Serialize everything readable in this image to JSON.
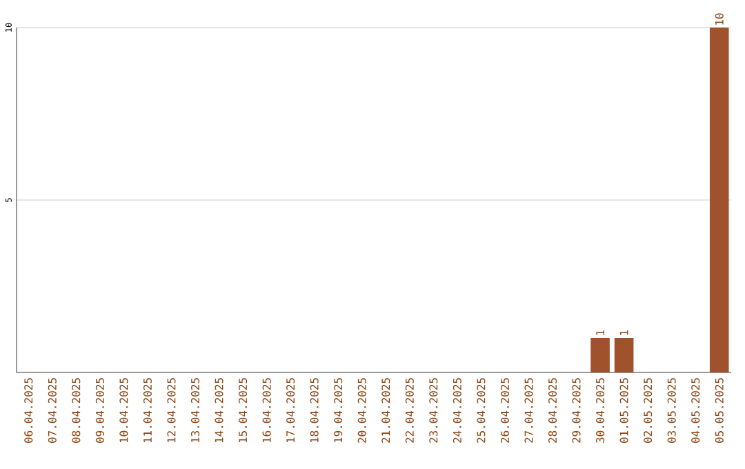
{
  "chart_data": {
    "type": "bar",
    "categories": [
      "06.04.2025",
      "07.04.2025",
      "08.04.2025",
      "09.04.2025",
      "10.04.2025",
      "11.04.2025",
      "12.04.2025",
      "13.04.2025",
      "14.04.2025",
      "15.04.2025",
      "16.04.2025",
      "17.04.2025",
      "18.04.2025",
      "19.04.2025",
      "20.04.2025",
      "21.04.2025",
      "22.04.2025",
      "23.04.2025",
      "24.04.2025",
      "25.04.2025",
      "26.04.2025",
      "27.04.2025",
      "28.04.2025",
      "29.04.2025",
      "30.04.2025",
      "01.05.2025",
      "02.05.2025",
      "03.05.2025",
      "04.05.2025",
      "05.05.2025"
    ],
    "values": [
      0,
      0,
      0,
      0,
      0,
      0,
      0,
      0,
      0,
      0,
      0,
      0,
      0,
      0,
      0,
      0,
      0,
      0,
      0,
      0,
      0,
      0,
      0,
      0,
      1,
      1,
      0,
      0,
      0,
      10
    ],
    "value_labels": [
      null,
      null,
      null,
      null,
      null,
      null,
      null,
      null,
      null,
      null,
      null,
      null,
      null,
      null,
      null,
      null,
      null,
      null,
      null,
      null,
      null,
      null,
      null,
      null,
      "1",
      "1",
      null,
      null,
      null,
      "10"
    ],
    "color": "#a0522d",
    "ylim": [
      0,
      10
    ],
    "yticks": [
      5,
      10
    ],
    "grid": "y"
  }
}
